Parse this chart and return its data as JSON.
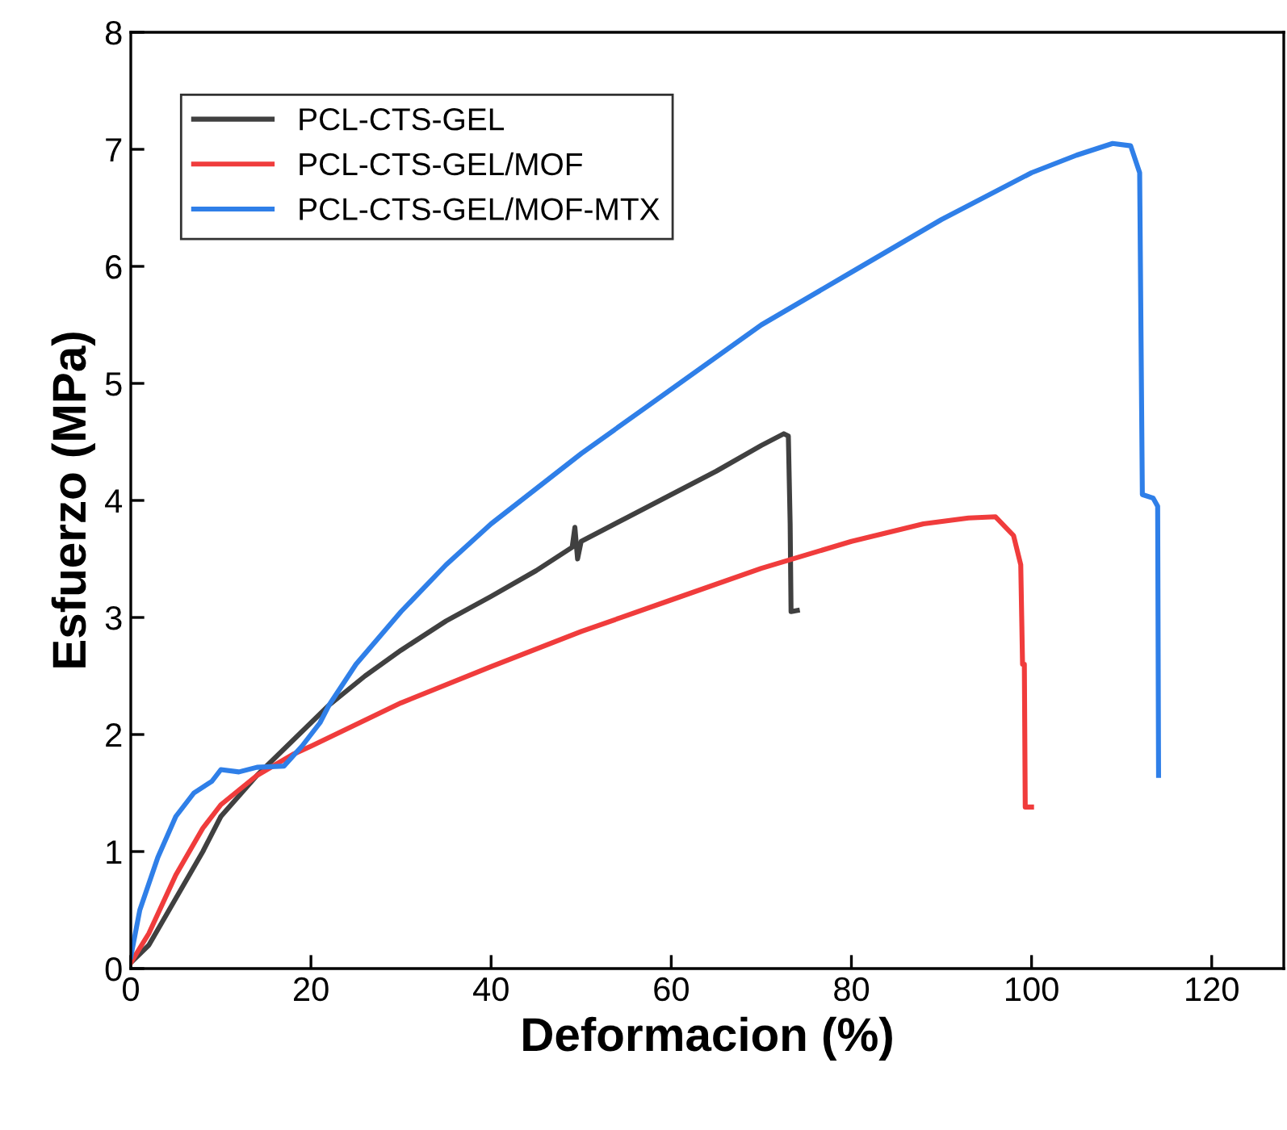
{
  "chart_data": {
    "type": "line",
    "xlabel": "Deformacion (%)",
    "ylabel": "Esfuerzo (MPa)",
    "xlim": [
      0,
      128
    ],
    "xticks": [
      0,
      20,
      40,
      60,
      80,
      100,
      120
    ],
    "ylim": [
      0,
      8
    ],
    "yticks": [
      0,
      1,
      2,
      3,
      4,
      5,
      6,
      7,
      8
    ],
    "grid": false,
    "legend": "top left",
    "line_style": "solid",
    "marker": "none",
    "series": [
      {
        "name": "PCL-CTS-GEL",
        "color": "#404040",
        "x": [
          0,
          2,
          5,
          8,
          10,
          14,
          18,
          22,
          26,
          30,
          35,
          40,
          45,
          48,
          49,
          49.3,
          49.6,
          50,
          55,
          60,
          65,
          70,
          72.5,
          73,
          73.2,
          73.3,
          74
        ],
        "values": [
          0.05,
          0.2,
          0.6,
          1.0,
          1.3,
          1.65,
          1.95,
          2.25,
          2.5,
          2.72,
          2.97,
          3.18,
          3.4,
          3.55,
          3.6,
          3.77,
          3.5,
          3.65,
          3.85,
          4.05,
          4.25,
          4.47,
          4.57,
          4.55,
          3.8,
          3.05,
          3.06
        ]
      },
      {
        "name": "PCL-CTS-GEL/MOF",
        "color": "#f03c3c",
        "x": [
          0,
          2,
          5,
          8,
          10,
          14,
          18,
          20,
          30,
          40,
          50,
          60,
          70,
          80,
          88,
          93,
          96,
          98,
          98.8,
          99,
          99.2,
          99.3,
          100
        ],
        "values": [
          0.05,
          0.3,
          0.8,
          1.2,
          1.4,
          1.65,
          1.83,
          1.9,
          2.27,
          2.58,
          2.88,
          3.15,
          3.42,
          3.65,
          3.8,
          3.85,
          3.86,
          3.7,
          3.45,
          2.6,
          2.6,
          1.38,
          1.38
        ]
      },
      {
        "name": "PCL-CTS-GEL/MOF-MTX",
        "color": "#2f7fe8",
        "x": [
          0,
          1,
          3,
          5,
          7,
          9,
          10,
          12,
          14,
          17,
          19,
          21,
          22,
          25,
          30,
          35,
          40,
          45,
          50,
          60,
          70,
          80,
          90,
          100,
          105,
          109,
          111,
          112,
          112.3,
          113.5,
          114,
          114.1
        ],
        "values": [
          0.1,
          0.5,
          0.95,
          1.3,
          1.5,
          1.6,
          1.7,
          1.68,
          1.72,
          1.73,
          1.9,
          2.1,
          2.25,
          2.6,
          3.05,
          3.45,
          3.8,
          4.1,
          4.4,
          4.95,
          5.5,
          5.95,
          6.4,
          6.8,
          6.95,
          7.05,
          7.03,
          6.8,
          4.05,
          4.02,
          3.95,
          1.65
        ]
      }
    ]
  }
}
